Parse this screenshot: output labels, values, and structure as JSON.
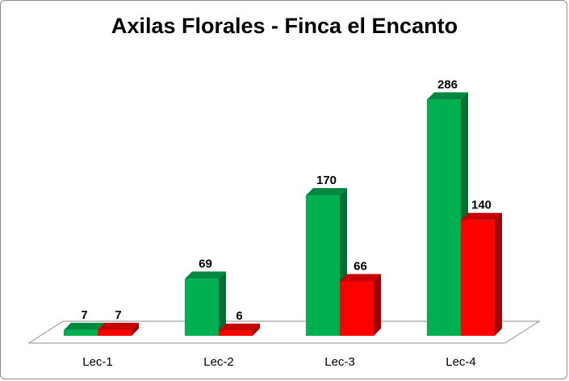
{
  "chart_data": {
    "type": "bar",
    "title": "Axilas Florales - Finca el Encanto",
    "categories": [
      "Lec-1",
      "Lec-2",
      "Lec-3",
      "Lec-4"
    ],
    "series": [
      {
        "values": [
          7,
          69,
          170,
          286
        ],
        "color": "#00b050"
      },
      {
        "values": [
          7,
          6,
          66,
          140
        ],
        "color": "#ff0000"
      }
    ],
    "ylim": [
      0,
      300
    ],
    "style": "3d-clustered-column",
    "grid": false,
    "legend": "none",
    "data_labels": true
  }
}
